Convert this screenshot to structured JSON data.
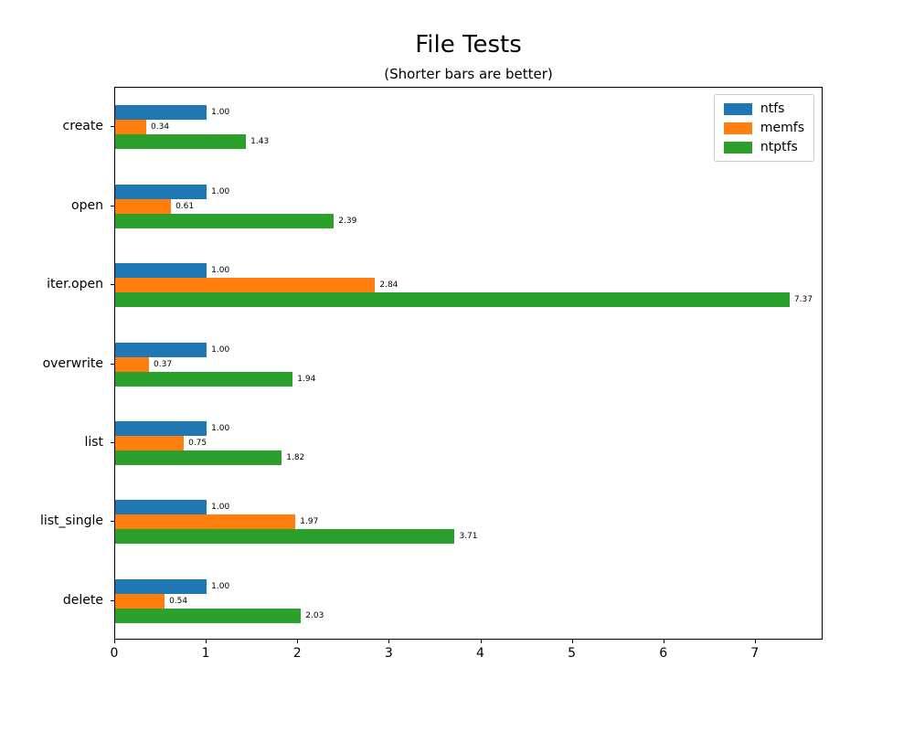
{
  "chart_data": {
    "type": "bar",
    "orientation": "horizontal",
    "title": "File Tests",
    "subtitle": "(Shorter bars are better)",
    "categories": [
      "create",
      "open",
      "iter.open",
      "overwrite",
      "list",
      "list_single",
      "delete"
    ],
    "series": [
      {
        "name": "ntfs",
        "color": "#1f77b4",
        "values": [
          1.0,
          1.0,
          1.0,
          1.0,
          1.0,
          1.0,
          1.0
        ]
      },
      {
        "name": "memfs",
        "color": "#ff7f0e",
        "values": [
          0.34,
          0.61,
          2.84,
          0.37,
          0.75,
          1.97,
          0.54
        ]
      },
      {
        "name": "ntptfs",
        "color": "#2ca02c",
        "values": [
          1.43,
          2.39,
          7.37,
          1.94,
          1.82,
          3.71,
          2.03
        ]
      }
    ],
    "xlim": [
      0,
      7.74
    ],
    "xticks": [
      0,
      1,
      2,
      3,
      4,
      5,
      6,
      7
    ],
    "bar_labels": true,
    "bar_label_format": "0.00",
    "legend_position": "upper right",
    "grid": false,
    "background_color": "#ffffff",
    "spine_color": "#000000"
  }
}
